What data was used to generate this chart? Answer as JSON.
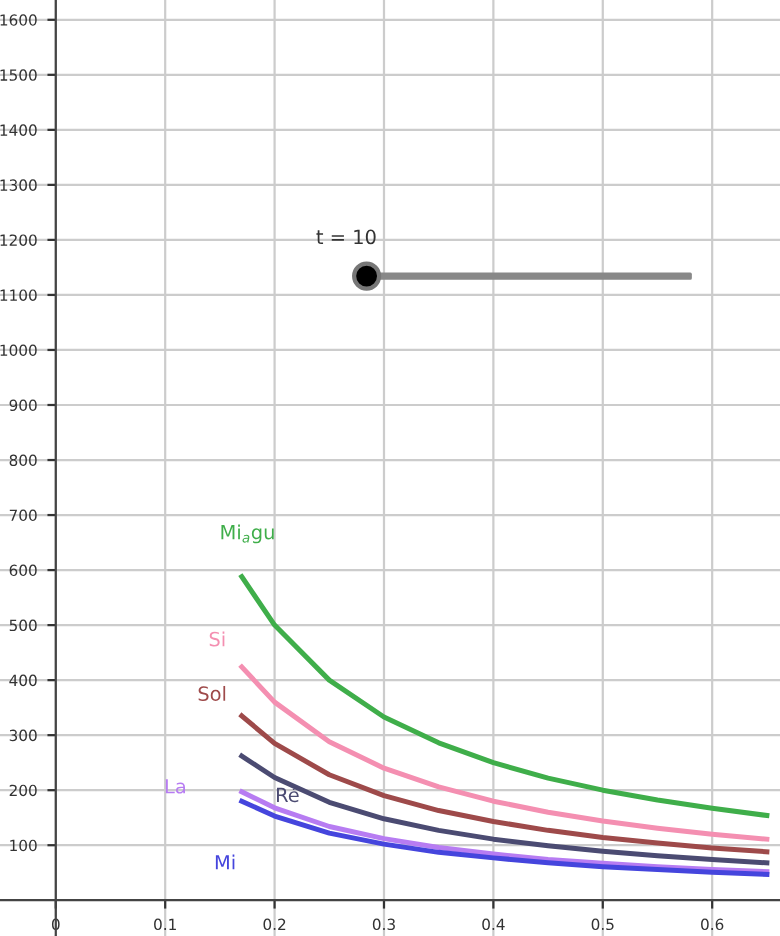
{
  "chart_data": {
    "type": "line",
    "x": [
      0.17,
      0.2,
      0.25,
      0.3,
      0.35,
      0.4,
      0.45,
      0.5,
      0.55,
      0.6,
      0.65
    ],
    "series": [
      {
        "name": "Mi$_{a}$gu",
        "color": "#3fae4a",
        "values": [
          588,
          500,
          400,
          333,
          286,
          250,
          222,
          200,
          182,
          167,
          154
        ]
      },
      {
        "name": "Si",
        "color": "#f48fb1",
        "values": [
          424,
          360,
          288,
          240,
          206,
          180,
          160,
          144,
          131,
          120,
          111
        ]
      },
      {
        "name": "Sol",
        "color": "#9e4a4a",
        "values": [
          335,
          285,
          228,
          190,
          163,
          143,
          127,
          114,
          104,
          95,
          88
        ]
      },
      {
        "name": "Ré",
        "color": "#4b4b72",
        "values": [
          262,
          223,
          178,
          148,
          127,
          111,
          99,
          89,
          81,
          74,
          68
        ]
      },
      {
        "name": "La",
        "color": "#b77cf2",
        "values": [
          197,
          168,
          134,
          112,
          96,
          84,
          74,
          67,
          61,
          56,
          52
        ]
      },
      {
        "name": "Mi",
        "color": "#4545dd",
        "values": [
          180,
          153,
          122,
          102,
          87,
          77,
          68,
          61,
          56,
          51,
          47
        ]
      }
    ],
    "xlim": [
      -0.051,
      0.662
    ],
    "ylim": [
      -65,
      1636
    ],
    "xticks": [
      0,
      0.1,
      0.2,
      0.3,
      0.4,
      0.5,
      0.6
    ],
    "yticks": [
      100,
      200,
      300,
      400,
      500,
      600,
      700,
      800,
      900,
      1000,
      1100,
      1200,
      1300,
      1400,
      1500,
      1600
    ],
    "grid": true,
    "marker": "none",
    "line_style": "solid",
    "annotations": [
      "t = 10"
    ]
  }
}
